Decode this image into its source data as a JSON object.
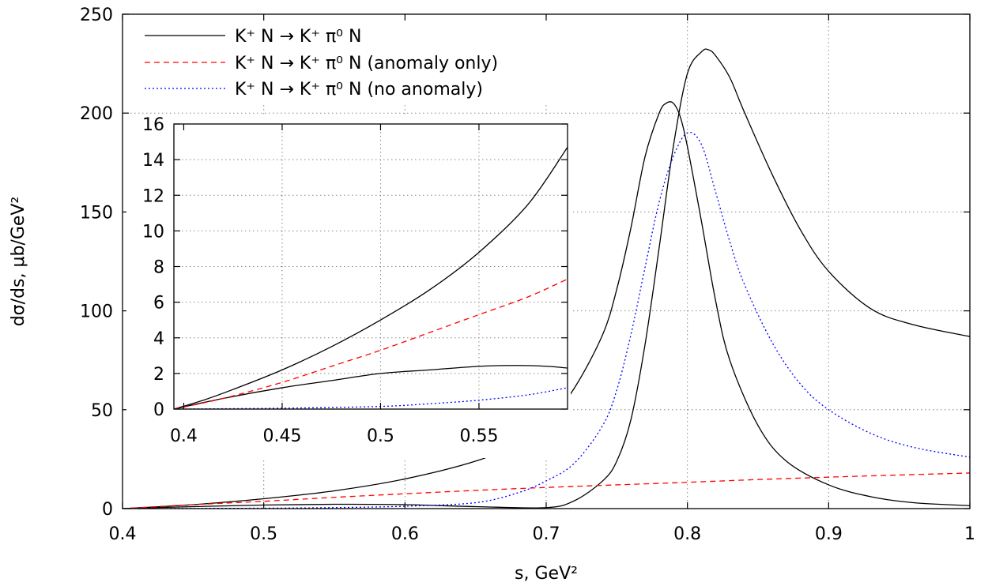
{
  "chart_data": [
    {
      "id": "main",
      "type": "line",
      "title": "",
      "xlabel": "s, GeV²",
      "ylabel": "dσ/ds, μb/GeV²",
      "xlim": [
        0.4,
        1.0
      ],
      "ylim": [
        0,
        250
      ],
      "xticks": [
        0.4,
        0.5,
        0.6,
        0.7,
        0.8,
        0.9,
        1.0
      ],
      "xtick_labels": [
        "0.4",
        "0.5",
        "0.6",
        "0.7",
        "0.8",
        "0.9",
        "1"
      ],
      "yticks": [
        0,
        50,
        100,
        150,
        200,
        250
      ],
      "ytick_labels": [
        "0",
        "50",
        "100",
        "150",
        "200",
        "250"
      ],
      "grid": true,
      "legend": "top-left",
      "series": [
        {
          "name": "K⁺ N → K⁺ π⁰ N",
          "color": "#000000",
          "dash": "solid",
          "x": [
            0.4,
            0.45,
            0.5,
            0.55,
            0.6,
            0.65,
            0.68,
            0.7,
            0.72,
            0.74,
            0.75,
            0.76,
            0.77,
            0.78,
            0.785,
            0.79,
            0.795,
            0.8,
            0.81,
            0.82,
            0.83,
            0.85,
            0.87,
            0.9,
            0.93,
            0.96,
            1.0
          ],
          "y": [
            0,
            2,
            5,
            9,
            15,
            24,
            33,
            43,
            61,
            88,
            111,
            142,
            178,
            200,
            205,
            205,
            198,
            183,
            145,
            105,
            75,
            42,
            24,
            12,
            6,
            3,
            1.5
          ]
        },
        {
          "name": "K⁺ N → K⁺ π⁰ N",
          "color": "#000000",
          "dash": "solid",
          "x": [
            0.4,
            0.45,
            0.5,
            0.55,
            0.6,
            0.65,
            0.7,
            0.72,
            0.74,
            0.75,
            0.76,
            0.77,
            0.78,
            0.79,
            0.8,
            0.81,
            0.815,
            0.82,
            0.83,
            0.84,
            0.86,
            0.88,
            0.9,
            0.93,
            0.96,
            1.0
          ],
          "y": [
            0,
            1,
            1.8,
            2.2,
            2.0,
            1.0,
            0.5,
            4,
            14,
            24,
            45,
            83,
            132,
            183,
            220,
            231,
            232,
            229,
            218,
            201,
            169,
            141,
            120,
            101,
            93,
            87
          ]
        },
        {
          "name": "K⁺ N → K⁺ π⁰ N (anomaly only)",
          "color": "#ff0000",
          "dash": "dashed",
          "x": [
            0.4,
            0.45,
            0.5,
            0.55,
            0.6,
            0.65,
            0.7,
            0.75,
            0.8,
            0.85,
            0.9,
            0.95,
            1.0
          ],
          "y": [
            0,
            2.0,
            3.7,
            5.7,
            7.5,
            9.2,
            10.7,
            12.0,
            13.3,
            14.7,
            15.9,
            17.0,
            18.0
          ]
        },
        {
          "name": "K⁺ N → K⁺ π⁰ N (no anomaly)",
          "color": "#0000ff",
          "dash": "dotted",
          "x": [
            0.4,
            0.45,
            0.5,
            0.55,
            0.6,
            0.65,
            0.68,
            0.7,
            0.72,
            0.74,
            0.75,
            0.76,
            0.77,
            0.78,
            0.79,
            0.8,
            0.81,
            0.82,
            0.83,
            0.84,
            0.86,
            0.88,
            0.9,
            0.93,
            0.96,
            1.0
          ],
          "y": [
            0,
            0.1,
            0.2,
            0.5,
            1.2,
            3,
            8,
            14,
            23,
            42,
            60,
            88,
            122,
            155,
            178,
            190,
            184,
            160,
            135,
            114,
            84,
            63,
            50,
            38,
            31,
            26
          ]
        }
      ]
    },
    {
      "id": "inset",
      "type": "line",
      "title": "",
      "xlabel": "",
      "ylabel": "",
      "xlim": [
        0.395,
        0.595
      ],
      "ylim": [
        0,
        16
      ],
      "xticks": [
        0.4,
        0.45,
        0.5,
        0.55
      ],
      "xtick_labels": [
        "0.4",
        "0.45",
        "0.5",
        "0.55"
      ],
      "yticks": [
        0,
        2,
        4,
        6,
        8,
        10,
        12,
        14,
        16
      ],
      "ytick_labels": [
        "0",
        "2",
        "4",
        "6",
        "8",
        "10",
        "12",
        "14",
        "16"
      ],
      "grid": true,
      "series": [
        {
          "name": "K⁺ N → K⁺ π⁰ N",
          "color": "#000000",
          "dash": "solid",
          "x": [
            0.395,
            0.41,
            0.425,
            0.45,
            0.475,
            0.5,
            0.525,
            0.55,
            0.575,
            0.595
          ],
          "y": [
            0,
            0.5,
            1.1,
            2.2,
            3.5,
            5.0,
            6.7,
            8.8,
            11.5,
            14.7
          ]
        },
        {
          "name": "K⁺ N → K⁺ π⁰ N",
          "color": "#000000",
          "dash": "solid",
          "x": [
            0.395,
            0.42,
            0.45,
            0.475,
            0.5,
            0.525,
            0.55,
            0.57,
            0.585,
            0.595
          ],
          "y": [
            0,
            0.6,
            1.2,
            1.6,
            2.0,
            2.2,
            2.4,
            2.45,
            2.4,
            2.3
          ]
        },
        {
          "name": "K⁺ N → K⁺ π⁰ N (anomaly only)",
          "color": "#ff0000",
          "dash": "dashed",
          "x": [
            0.395,
            0.42,
            0.45,
            0.475,
            0.5,
            0.525,
            0.55,
            0.575,
            0.595
          ],
          "y": [
            0,
            0.6,
            1.5,
            2.4,
            3.3,
            4.3,
            5.3,
            6.3,
            7.3
          ]
        },
        {
          "name": "K⁺ N → K⁺ π⁰ N (no anomaly)",
          "color": "#0000ff",
          "dash": "dotted",
          "x": [
            0.395,
            0.45,
            0.5,
            0.525,
            0.55,
            0.575,
            0.595
          ],
          "y": [
            0,
            0.05,
            0.15,
            0.3,
            0.5,
            0.8,
            1.2
          ]
        }
      ]
    }
  ]
}
